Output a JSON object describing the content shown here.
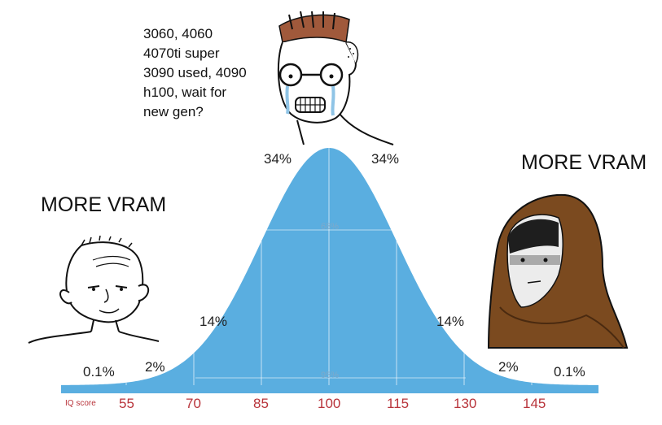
{
  "meme": {
    "top_text": "3060, 4060\n4070ti super\n3090 used, 4090\nh100, wait for\nnew gen?",
    "left_caption": "MORE VRAM",
    "right_caption": "MORE VRAM"
  },
  "chart_data": {
    "type": "area",
    "axis_label": "IQ score",
    "x_ticks": [
      "55",
      "70",
      "85",
      "100",
      "115",
      "130",
      "145"
    ],
    "band_percent_labels": [
      "0.1%",
      "2%",
      "14%",
      "34%",
      "34%",
      "14%",
      "2%",
      "0.1%"
    ],
    "inner_labels": [
      "68%",
      "95%"
    ],
    "colors": {
      "curve_fill": "#5aaee0",
      "tick_red": "#b8333a",
      "baseline": "#5aaee0"
    }
  },
  "characters": [
    {
      "name": "wojak-left",
      "role": "low end"
    },
    {
      "name": "crying-wojak-center",
      "role": "middle"
    },
    {
      "name": "hooded-figure-right",
      "role": "high end"
    }
  ]
}
